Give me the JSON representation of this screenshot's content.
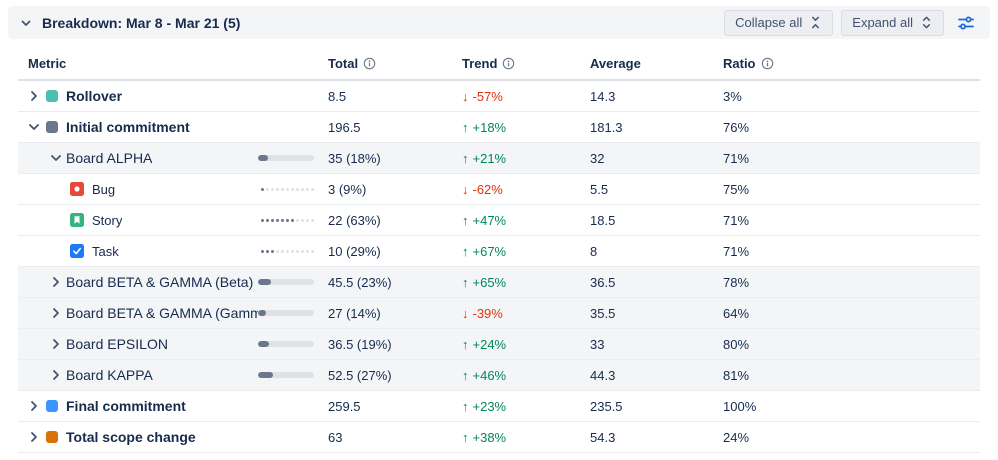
{
  "header": {
    "title": "Breakdown: Mar 8 - Mar 21 (5)",
    "collapse_all_label": "Collapse all",
    "expand_all_label": "Expand all"
  },
  "table": {
    "columns": [
      {
        "label": "Metric",
        "info": false
      },
      {
        "label": "Total",
        "info": true
      },
      {
        "label": "Trend",
        "info": true
      },
      {
        "label": "Average",
        "info": false
      },
      {
        "label": "Ratio",
        "info": true
      }
    ],
    "rows": [
      {
        "label": "Rollover",
        "level": 0,
        "icon": "square",
        "icon_name": "rollover-square-icon",
        "icon_color": "#4CC0B0",
        "chevron": "right",
        "shaded": false,
        "bar": null,
        "total": "8.5",
        "trend": {
          "dir": "down",
          "value": "-57%"
        },
        "average": "14.3",
        "ratio": "3%"
      },
      {
        "label": "Initial commitment",
        "level": 0,
        "icon": "square",
        "icon_name": "initial-commitment-square-icon",
        "icon_color": "#6B778C",
        "chevron": "down",
        "shaded": false,
        "bar": null,
        "total": "196.5",
        "trend": {
          "dir": "up",
          "value": "+18%"
        },
        "average": "181.3",
        "ratio": "76%"
      },
      {
        "label": "Board ALPHA",
        "level": 1,
        "icon": null,
        "chevron": "down",
        "shaded": true,
        "bar": {
          "type": "solid",
          "pct": 18
        },
        "total": "35 (18%)",
        "trend": {
          "dir": "up",
          "value": "+21%"
        },
        "average": "32",
        "ratio": "71%"
      },
      {
        "label": "Bug",
        "level": 2,
        "icon": "bug",
        "chevron": null,
        "shaded": false,
        "bar": {
          "type": "dotted",
          "pct": 9
        },
        "total": "3 (9%)",
        "trend": {
          "dir": "down",
          "value": "-62%"
        },
        "average": "5.5",
        "ratio": "75%"
      },
      {
        "label": "Story",
        "level": 2,
        "icon": "story",
        "chevron": null,
        "shaded": false,
        "bar": {
          "type": "dotted",
          "pct": 63
        },
        "total": "22 (63%)",
        "trend": {
          "dir": "up",
          "value": "+47%"
        },
        "average": "18.5",
        "ratio": "71%"
      },
      {
        "label": "Task",
        "level": 2,
        "icon": "task",
        "chevron": null,
        "shaded": false,
        "bar": {
          "type": "dotted",
          "pct": 29
        },
        "total": "10 (29%)",
        "trend": {
          "dir": "up",
          "value": "+67%"
        },
        "average": "8",
        "ratio": "71%"
      },
      {
        "label": "Board BETA & GAMMA (Beta)",
        "level": 1,
        "icon": null,
        "chevron": "right",
        "shaded": true,
        "bar": {
          "type": "solid",
          "pct": 23
        },
        "total": "45.5 (23%)",
        "trend": {
          "dir": "up",
          "value": "+65%"
        },
        "average": "36.5",
        "ratio": "78%"
      },
      {
        "label": "Board BETA & GAMMA (Gamm",
        "level": 1,
        "icon": null,
        "chevron": "right",
        "shaded": true,
        "bar": {
          "type": "solid",
          "pct": 14
        },
        "total": "27 (14%)",
        "trend": {
          "dir": "down",
          "value": "-39%"
        },
        "average": "35.5",
        "ratio": "64%"
      },
      {
        "label": "Board EPSILON",
        "level": 1,
        "icon": null,
        "chevron": "right",
        "shaded": true,
        "bar": {
          "type": "solid",
          "pct": 19
        },
        "total": "36.5 (19%)",
        "trend": {
          "dir": "up",
          "value": "+24%"
        },
        "average": "33",
        "ratio": "80%"
      },
      {
        "label": "Board KAPPA",
        "level": 1,
        "icon": null,
        "chevron": "right",
        "shaded": true,
        "bar": {
          "type": "solid",
          "pct": 27
        },
        "total": "52.5 (27%)",
        "trend": {
          "dir": "up",
          "value": "+46%"
        },
        "average": "44.3",
        "ratio": "81%"
      },
      {
        "label": "Final commitment",
        "level": 0,
        "icon": "square",
        "icon_name": "final-commitment-square-icon",
        "icon_color": "#3B94FF",
        "chevron": "right",
        "shaded": false,
        "bar": null,
        "total": "259.5",
        "trend": {
          "dir": "up",
          "value": "+23%"
        },
        "average": "235.5",
        "ratio": "100%"
      },
      {
        "label": "Total scope change",
        "level": 0,
        "icon": "square",
        "icon_name": "scope-change-square-icon",
        "icon_color": "#D97008",
        "chevron": "right",
        "shaded": false,
        "bar": null,
        "total": "63",
        "trend": {
          "dir": "up",
          "value": "+38%"
        },
        "average": "54.3",
        "ratio": "24%"
      }
    ]
  },
  "colors": {
    "trend_up": "#00875A",
    "trend_down": "#DE350B",
    "bar_fill": "#6B778C",
    "bar_track": "#DFE1E6",
    "bug": "#E5493A",
    "story": "#36B37E",
    "task": "#1D7AFC",
    "accent": "#1868DB"
  }
}
